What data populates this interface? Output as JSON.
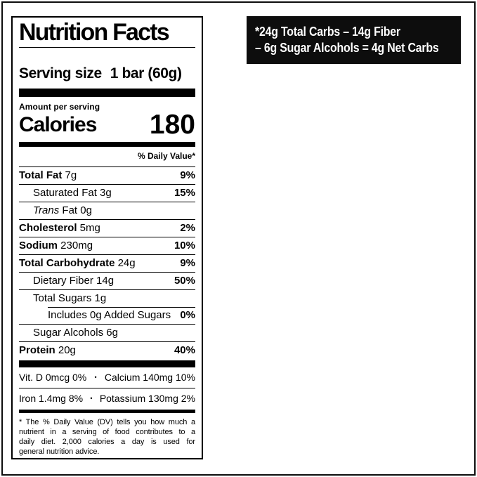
{
  "colors": {
    "ink": "#000000",
    "paper": "#ffffff",
    "badge_bg": "#0d0d0d",
    "badge_text": "#ffffff"
  },
  "badge": {
    "line1": "*24g Total Carbs – 14g Fiber",
    "line2": "– 6g Sugar Alcohols = 4g Net Carbs"
  },
  "label": {
    "title": "Nutrition Facts",
    "serving_size_label": "Serving size",
    "serving_size_value": "1 bar (60g)",
    "amount_per_serving": "Amount per serving",
    "calories_label": "Calories",
    "calories_value": "180",
    "daily_value_header": "% Daily Value*",
    "rows": [
      {
        "name": "Total Fat",
        "bold": true,
        "amount": "7g",
        "dv": "9%",
        "indent": 0,
        "sep": "full"
      },
      {
        "name": "Saturated Fat",
        "bold": false,
        "amount": "3g",
        "dv": "15%",
        "indent": 1,
        "sep": "full"
      },
      {
        "name_italic": "Trans",
        "name": "Fat",
        "bold": false,
        "amount": "0g",
        "dv": "",
        "indent": 1,
        "sep": "full"
      },
      {
        "name": "Cholesterol",
        "bold": true,
        "amount": "5mg",
        "dv": "2%",
        "indent": 0,
        "sep": "full"
      },
      {
        "name": "Sodium",
        "bold": true,
        "amount": "230mg",
        "dv": "10%",
        "indent": 0,
        "sep": "full"
      },
      {
        "name": "Total Carbohydrate",
        "bold": true,
        "amount": "24g",
        "dv": "9%",
        "indent": 0,
        "sep": "full"
      },
      {
        "name": "Dietary Fiber",
        "bold": false,
        "amount": "14g",
        "dv": "50%",
        "indent": 1,
        "sep": "full"
      },
      {
        "name": "Total Sugars",
        "bold": false,
        "amount": "1g",
        "dv": "",
        "indent": 1,
        "sep": "full"
      },
      {
        "name": "Includes 0g Added Sugars",
        "bold": false,
        "amount": "",
        "dv": "0%",
        "indent": 2,
        "sep": "indent"
      },
      {
        "name": "Sugar Alcohols",
        "bold": false,
        "amount": "6g",
        "dv": "",
        "indent": 1,
        "sep": "full"
      },
      {
        "name": "Protein",
        "bold": true,
        "amount": "20g",
        "dv": "40%",
        "indent": 0,
        "sep": "full"
      }
    ],
    "micronutrients": [
      {
        "left": "Vit. D 0mcg 0%",
        "bullet": "•",
        "right": "Calcium 140mg 10%"
      },
      {
        "left": "Iron 1.4mg 8%",
        "bullet": "•",
        "right": "Potassium 130mg 2%"
      }
    ],
    "footnote_lines": [
      {
        "text": "* The % Daily Value (DV) tells you how much a",
        "justify": true
      },
      {
        "text": "nutrient in a serving of food contributes to a",
        "justify": true
      },
      {
        "text": "daily diet. 2,000 calories a day is used for",
        "justify": true
      },
      {
        "text": "general nutrition advice.",
        "justify": false
      }
    ]
  }
}
